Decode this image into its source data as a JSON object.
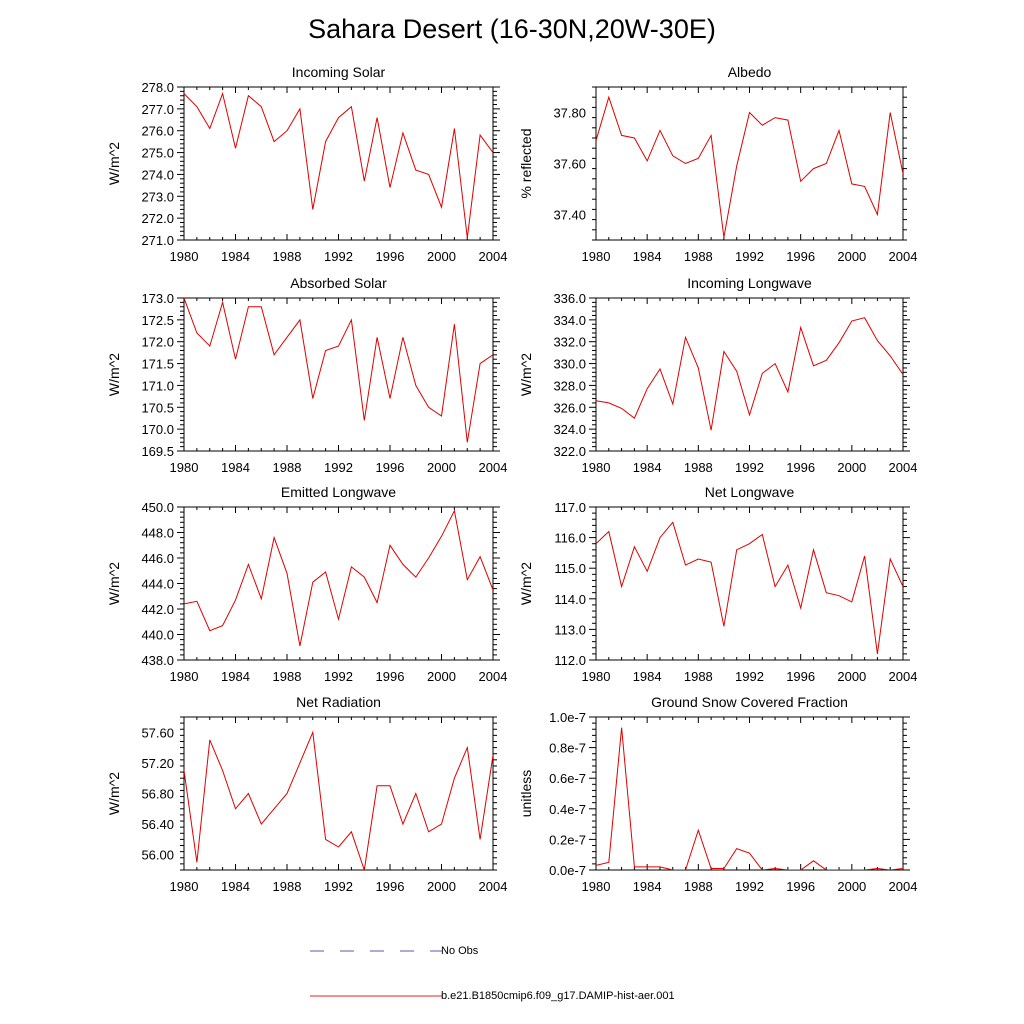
{
  "title": "Sahara Desert (16-30N,20W-30E)",
  "legend": {
    "items": [
      {
        "label": "No Obs",
        "color": "#5a5ab0",
        "style": "dashed"
      },
      {
        "label": "b.e21.B1850cmip6.f09_g17.DAMIP-hist-aer.001",
        "color": "#e8202a",
        "style": "solid"
      }
    ]
  },
  "line_color": "#e00000",
  "chart_data": [
    {
      "type": "line",
      "title": "Incoming Solar",
      "ylabel": "W/m^2",
      "xlim": [
        1980,
        2004
      ],
      "ylim": [
        271,
        278
      ],
      "yticks": [
        271,
        272,
        273,
        274,
        275,
        276,
        277,
        278
      ],
      "ytick_labels": [
        "271.0",
        "272.0",
        "273.0",
        "274.0",
        "275.0",
        "276.0",
        "277.0",
        "278.0"
      ],
      "xticks": [
        1980,
        1984,
        1988,
        1992,
        1996,
        2000,
        2004
      ],
      "xtick_labels": [
        "1980",
        "1984",
        "1988",
        "1992",
        "1996",
        "2000",
        "2004"
      ],
      "x": [
        1980,
        1981,
        1982,
        1983,
        1984,
        1985,
        1986,
        1987,
        1988,
        1989,
        1990,
        1991,
        1992,
        1993,
        1994,
        1995,
        1996,
        1997,
        1998,
        1999,
        2000,
        2001,
        2002,
        2003,
        2004
      ],
      "values": [
        277.7,
        277.1,
        276.1,
        277.7,
        275.2,
        277.6,
        277.1,
        275.5,
        276.0,
        277.0,
        272.4,
        275.5,
        276.6,
        277.1,
        273.7,
        276.6,
        273.4,
        275.9,
        274.2,
        274.0,
        272.5,
        276.1,
        271.1,
        275.8,
        275.0
      ]
    },
    {
      "type": "line",
      "title": "Albedo",
      "ylabel": "% reflected",
      "xlim": [
        1980,
        2004
      ],
      "ylim": [
        37.3,
        37.9
      ],
      "yticks": [
        37.4,
        37.6,
        37.8
      ],
      "ytick_labels": [
        "37.40",
        "37.60",
        "37.80"
      ],
      "xticks": [
        1980,
        1984,
        1988,
        1992,
        1996,
        2000,
        2004
      ],
      "xtick_labels": [
        "1980",
        "1984",
        "1988",
        "1992",
        "1996",
        "2000",
        "2004"
      ],
      "x": [
        1980,
        1981,
        1982,
        1983,
        1984,
        1985,
        1986,
        1987,
        1988,
        1989,
        1990,
        1991,
        1992,
        1993,
        1994,
        1995,
        1996,
        1997,
        1998,
        1999,
        2000,
        2001,
        2002,
        2003,
        2004
      ],
      "values": [
        37.69,
        37.86,
        37.71,
        37.7,
        37.61,
        37.73,
        37.63,
        37.6,
        37.62,
        37.71,
        37.31,
        37.59,
        37.8,
        37.75,
        37.78,
        37.77,
        37.53,
        37.58,
        37.6,
        37.73,
        37.52,
        37.51,
        37.4,
        37.8,
        37.56
      ]
    },
    {
      "type": "line",
      "title": "Absorbed Solar",
      "ylabel": "W/m^2",
      "xlim": [
        1980,
        2004
      ],
      "ylim": [
        169.5,
        173.0
      ],
      "yticks": [
        169.5,
        170.0,
        170.5,
        171.0,
        171.5,
        172.0,
        172.5,
        173.0
      ],
      "ytick_labels": [
        "169.5",
        "170.0",
        "170.5",
        "171.0",
        "171.5",
        "172.0",
        "172.5",
        "173.0"
      ],
      "xticks": [
        1980,
        1984,
        1988,
        1992,
        1996,
        2000,
        2004
      ],
      "xtick_labels": [
        "1980",
        "1984",
        "1988",
        "1992",
        "1996",
        "2000",
        "2004"
      ],
      "x": [
        1980,
        1981,
        1982,
        1983,
        1984,
        1985,
        1986,
        1987,
        1988,
        1989,
        1990,
        1991,
        1992,
        1993,
        1994,
        1995,
        1996,
        1997,
        1998,
        1999,
        2000,
        2001,
        2002,
        2003,
        2004
      ],
      "values": [
        173.0,
        172.2,
        171.9,
        172.9,
        171.6,
        172.8,
        172.8,
        171.7,
        172.1,
        172.5,
        170.7,
        171.8,
        171.9,
        172.5,
        170.2,
        172.1,
        170.7,
        172.1,
        171.0,
        170.5,
        170.3,
        172.4,
        169.7,
        171.5,
        171.7
      ]
    },
    {
      "type": "line",
      "title": "Incoming Longwave",
      "ylabel": "W/m^2",
      "xlim": [
        1980,
        2004
      ],
      "ylim": [
        322,
        336
      ],
      "yticks": [
        322,
        324,
        326,
        328,
        330,
        332,
        334,
        336
      ],
      "ytick_labels": [
        "322.0",
        "324.0",
        "326.0",
        "328.0",
        "330.0",
        "332.0",
        "334.0",
        "336.0"
      ],
      "xticks": [
        1980,
        1984,
        1988,
        1992,
        1996,
        2000,
        2004
      ],
      "xtick_labels": [
        "1980",
        "1984",
        "1988",
        "1992",
        "1996",
        "2000",
        "2004"
      ],
      "x": [
        1980,
        1981,
        1982,
        1983,
        1984,
        1985,
        1986,
        1987,
        1988,
        1989,
        1990,
        1991,
        1992,
        1993,
        1994,
        1995,
        1996,
        1997,
        1998,
        1999,
        2000,
        2001,
        2002,
        2003,
        2004
      ],
      "values": [
        326.6,
        326.4,
        325.9,
        325.0,
        327.7,
        329.5,
        326.3,
        332.4,
        329.6,
        323.9,
        331.1,
        329.3,
        325.3,
        329.1,
        330.0,
        327.4,
        333.3,
        329.8,
        330.3,
        331.9,
        333.9,
        334.2,
        332.1,
        330.7,
        329.0
      ]
    },
    {
      "type": "line",
      "title": "Emitted Longwave",
      "ylabel": "W/m^2",
      "xlim": [
        1980,
        2004
      ],
      "ylim": [
        438,
        450
      ],
      "yticks": [
        438,
        440,
        442,
        444,
        446,
        448,
        450
      ],
      "ytick_labels": [
        "438.0",
        "440.0",
        "442.0",
        "444.0",
        "446.0",
        "448.0",
        "450.0"
      ],
      "xticks": [
        1980,
        1984,
        1988,
        1992,
        1996,
        2000,
        2004
      ],
      "xtick_labels": [
        "1980",
        "1984",
        "1988",
        "1992",
        "1996",
        "2000",
        "2004"
      ],
      "x": [
        1980,
        1981,
        1982,
        1983,
        1984,
        1985,
        1986,
        1987,
        1988,
        1989,
        1990,
        1991,
        1992,
        1993,
        1994,
        1995,
        1996,
        1997,
        1998,
        1999,
        2000,
        2001,
        2002,
        2003,
        2004
      ],
      "values": [
        442.4,
        442.6,
        440.3,
        440.7,
        442.7,
        445.5,
        442.8,
        447.6,
        444.8,
        439.1,
        444.1,
        444.9,
        441.2,
        445.3,
        444.5,
        442.5,
        447.0,
        445.5,
        444.5,
        446.0,
        447.7,
        449.7,
        444.3,
        446.1,
        443.5
      ]
    },
    {
      "type": "line",
      "title": "Net Longwave",
      "ylabel": "W/m^2",
      "xlim": [
        1980,
        2004
      ],
      "ylim": [
        112,
        117
      ],
      "yticks": [
        112,
        113,
        114,
        115,
        116,
        117
      ],
      "ytick_labels": [
        "112.0",
        "113.0",
        "114.0",
        "115.0",
        "116.0",
        "117.0"
      ],
      "xticks": [
        1980,
        1984,
        1988,
        1992,
        1996,
        2000,
        2004
      ],
      "xtick_labels": [
        "1980",
        "1984",
        "1988",
        "1992",
        "1996",
        "2000",
        "2004"
      ],
      "x": [
        1980,
        1981,
        1982,
        1983,
        1984,
        1985,
        1986,
        1987,
        1988,
        1989,
        1990,
        1991,
        1992,
        1993,
        1994,
        1995,
        1996,
        1997,
        1998,
        1999,
        2000,
        2001,
        2002,
        2003,
        2004
      ],
      "values": [
        115.8,
        116.2,
        114.4,
        115.7,
        114.9,
        116.0,
        116.5,
        115.1,
        115.3,
        115.2,
        113.1,
        115.6,
        115.8,
        116.1,
        114.4,
        115.1,
        113.7,
        115.6,
        114.2,
        114.1,
        113.9,
        115.4,
        112.2,
        115.3,
        114.4
      ]
    },
    {
      "type": "line",
      "title": "Net Radiation",
      "ylabel": "W/m^2",
      "xlim": [
        1980,
        2004
      ],
      "ylim": [
        55.8,
        57.8
      ],
      "yticks": [
        56.0,
        56.4,
        56.8,
        57.2,
        57.6
      ],
      "ytick_labels": [
        "56.00",
        "56.40",
        "56.80",
        "57.20",
        "57.60"
      ],
      "xticks": [
        1980,
        1984,
        1988,
        1992,
        1996,
        2000,
        2004
      ],
      "xtick_labels": [
        "1980",
        "1984",
        "1988",
        "1992",
        "1996",
        "2000",
        "2004"
      ],
      "x": [
        1980,
        1981,
        1982,
        1983,
        1984,
        1985,
        1986,
        1987,
        1988,
        1989,
        1990,
        1991,
        1992,
        1993,
        1994,
        1995,
        1996,
        1997,
        1998,
        1999,
        2000,
        2001,
        2002,
        2003,
        2004
      ],
      "values": [
        57.1,
        55.9,
        57.5,
        57.1,
        56.6,
        56.8,
        56.4,
        56.6,
        56.8,
        57.2,
        57.6,
        56.2,
        56.1,
        56.3,
        55.8,
        56.9,
        56.9,
        56.4,
        56.8,
        56.3,
        56.4,
        57.0,
        57.4,
        56.2,
        57.3
      ]
    },
    {
      "type": "line",
      "title": "Ground Snow Covered Fraction",
      "ylabel": "unitless",
      "xlim": [
        1980,
        2004
      ],
      "ylim": [
        0,
        1.0
      ],
      "yticks": [
        0,
        0.2,
        0.4,
        0.6,
        0.8,
        1.0
      ],
      "ytick_labels": [
        "0.0e-7",
        "0.2e-7",
        "0.4e-7",
        "0.6e-7",
        "0.8e-7",
        "1.0e-7"
      ],
      "xticks": [
        1980,
        1984,
        1988,
        1992,
        1996,
        2000,
        2004
      ],
      "xtick_labels": [
        "1980",
        "1984",
        "1988",
        "1992",
        "1996",
        "2000",
        "2004"
      ],
      "x": [
        1980,
        1981,
        1982,
        1983,
        1984,
        1985,
        1986,
        1987,
        1988,
        1989,
        1990,
        1991,
        1992,
        1993,
        1994,
        1995,
        1996,
        1997,
        1998,
        1999,
        2000,
        2001,
        2002,
        2003,
        2004
      ],
      "values": [
        0.03,
        0.05,
        0.93,
        0.02,
        0.02,
        0.02,
        0.0,
        0.0,
        0.26,
        0.01,
        0.01,
        0.14,
        0.11,
        0.0,
        0.01,
        0.0,
        0.0,
        0.06,
        0.0,
        0.0,
        0.0,
        0.0,
        0.01,
        0.0,
        0.01
      ]
    }
  ]
}
